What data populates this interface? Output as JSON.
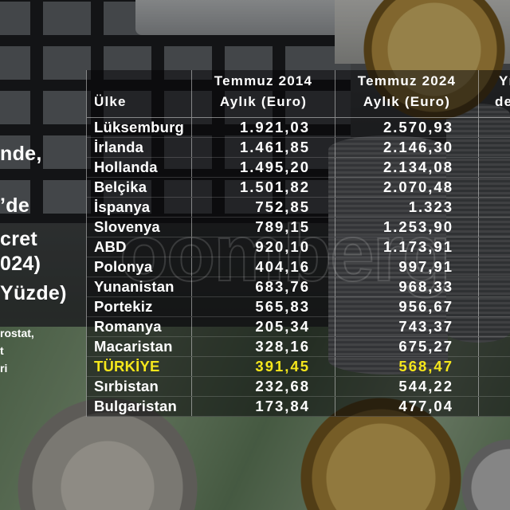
{
  "colors": {
    "text": "#ffffff",
    "highlight": "#f4e61c",
    "grid": "#d8d8d8"
  },
  "side_text": {
    "l1": "nde,",
    "l2": "’de",
    "l3": "cret",
    "l4": "024)",
    "l5": "Yüzde)",
    "s1": "rostat,",
    "s2": "t",
    "s3": "ri"
  },
  "watermark": "oomberg",
  "chart_data": {
    "type": "table",
    "header": {
      "country": "Ülke",
      "col_2014": [
        "Temmuz 2014",
        "Aylık (Euro)"
      ],
      "col_2024": [
        "Temmuz 2024",
        "Aylık (Euro)"
      ],
      "col_cut": [
        "Yı",
        "de"
      ]
    },
    "rows": [
      {
        "country": "Lüksemburg",
        "v2014": "1.921,03",
        "v2024": "2.570,93"
      },
      {
        "country": "İrlanda",
        "v2014": "1.461,85",
        "v2024": "2.146,30"
      },
      {
        "country": "Hollanda",
        "v2014": "1.495,20",
        "v2024": "2.134,08"
      },
      {
        "country": "Belçika",
        "v2014": "1.501,82",
        "v2024": "2.070,48"
      },
      {
        "country": "İspanya",
        "v2014": "752,85",
        "v2024": "1.323"
      },
      {
        "country": "Slovenya",
        "v2014": "789,15",
        "v2024": "1.253,90"
      },
      {
        "country": "ABD",
        "v2014": "920,10",
        "v2024": "1.173,91"
      },
      {
        "country": "Polonya",
        "v2014": "404,16",
        "v2024": "997,91"
      },
      {
        "country": "Yunanistan",
        "v2014": "683,76",
        "v2024": "968,33"
      },
      {
        "country": "Portekiz",
        "v2014": "565,83",
        "v2024": "956,67"
      },
      {
        "country": "Romanya",
        "v2014": "205,34",
        "v2024": "743,37"
      },
      {
        "country": "Macaristan",
        "v2014": "328,16",
        "v2024": "675,27"
      },
      {
        "country": "TÜRKİYE",
        "v2014": "391,45",
        "v2024": "568,47",
        "highlight": true
      },
      {
        "country": "Sırbistan",
        "v2014": "232,68",
        "v2024": "544,22"
      },
      {
        "country": "Bulgaristan",
        "v2014": "173,84",
        "v2024": "477,04"
      }
    ]
  }
}
